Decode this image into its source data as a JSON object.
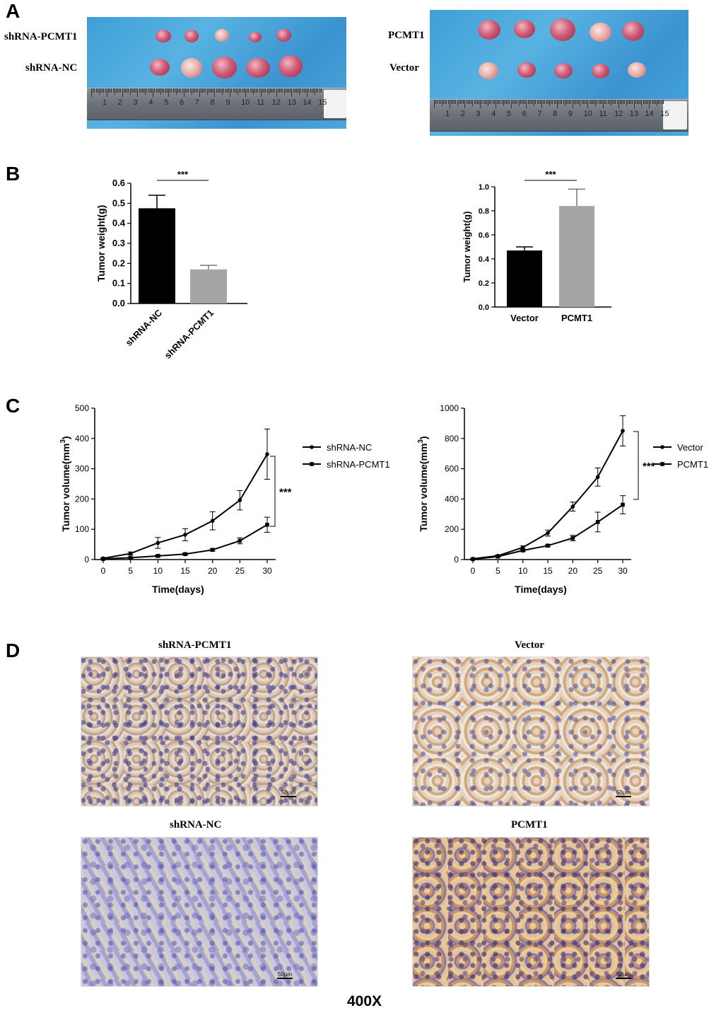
{
  "panels": {
    "a": "A",
    "b": "B",
    "c": "C",
    "d": "D"
  },
  "photos": {
    "left_labels": [
      "shRNA-PCMT1",
      "shRNA-NC"
    ],
    "right_labels": [
      "PCMT1",
      "Vector"
    ],
    "ruler_numbers": [
      "1",
      "2",
      "3",
      "4",
      "5",
      "6",
      "7",
      "8",
      "9",
      "10",
      "11",
      "12",
      "13",
      "14",
      "15"
    ]
  },
  "micro": {
    "labels": [
      "shRNA-PCMT1",
      "Vector",
      "shRNA-NC",
      "PCMT1"
    ],
    "scalebar": "50μm",
    "magnification": "400X"
  },
  "chart_data": [
    {
      "type": "bar",
      "ylabel": "Tumor weight(g)",
      "categories": [
        "shRNA-NC",
        "shRNA-PCMT1"
      ],
      "values": [
        0.475,
        0.17
      ],
      "errors": [
        0.065,
        0.02
      ],
      "colors": [
        "#000000",
        "#a5a5a8"
      ],
      "ylim": [
        0,
        0.6
      ],
      "yticks": [
        "0.0",
        "0.1",
        "0.2",
        "0.3",
        "0.4",
        "0.5",
        "0.6"
      ],
      "significance": "***"
    },
    {
      "type": "bar",
      "ylabel": "Tumor weight(g)",
      "categories": [
        "Vector",
        "PCMT1"
      ],
      "values": [
        0.47,
        0.84
      ],
      "errors": [
        0.03,
        0.14
      ],
      "colors": [
        "#000000",
        "#a5a5a8"
      ],
      "ylim": [
        0,
        1.0
      ],
      "yticks": [
        "0.0",
        "0.2",
        "0.4",
        "0.6",
        "0.8",
        "1.0"
      ],
      "significance": "***"
    },
    {
      "type": "line",
      "xlabel": "Time(days)",
      "ylabel": "Tumor volume(mm",
      "ylabel_sup": "3",
      "ylabel_close": ")",
      "x": [
        0,
        5,
        10,
        15,
        20,
        25,
        30
      ],
      "xticks": [
        "0",
        "5",
        "10",
        "15",
        "20",
        "25",
        "30"
      ],
      "yticks": [
        "0",
        "100",
        "200",
        "300",
        "400",
        "500"
      ],
      "ylim": [
        0,
        500
      ],
      "series": [
        {
          "name": "shRNA-NC",
          "values": [
            4,
            20,
            55,
            82,
            128,
            196,
            348
          ],
          "errors": [
            2,
            5,
            18,
            20,
            30,
            32,
            83
          ]
        },
        {
          "name": "shRNA-PCMT1",
          "values": [
            2,
            6,
            12,
            18,
            32,
            62,
            115
          ],
          "errors": [
            1,
            2,
            3,
            3,
            4,
            10,
            25
          ]
        }
      ],
      "significance": "***"
    },
    {
      "type": "line",
      "xlabel": "Time(days)",
      "ylabel": "Tumor volume(mm",
      "ylabel_sup": "3",
      "ylabel_close": ")",
      "x": [
        0,
        5,
        10,
        15,
        20,
        25,
        30
      ],
      "xticks": [
        "0",
        "5",
        "10",
        "15",
        "20",
        "25",
        "30"
      ],
      "yticks": [
        "0",
        "200",
        "400",
        "600",
        "800",
        "1000"
      ],
      "ylim": [
        0,
        1000
      ],
      "series": [
        {
          "name": "Vector",
          "values": [
            5,
            25,
            80,
            175,
            350,
            545,
            850
          ],
          "errors": [
            2,
            5,
            10,
            20,
            30,
            60,
            100
          ]
        },
        {
          "name": "PCMT1",
          "values": [
            3,
            20,
            60,
            92,
            142,
            248,
            362
          ],
          "errors": [
            1,
            3,
            6,
            8,
            18,
            65,
            60
          ]
        }
      ],
      "significance": "***"
    }
  ]
}
